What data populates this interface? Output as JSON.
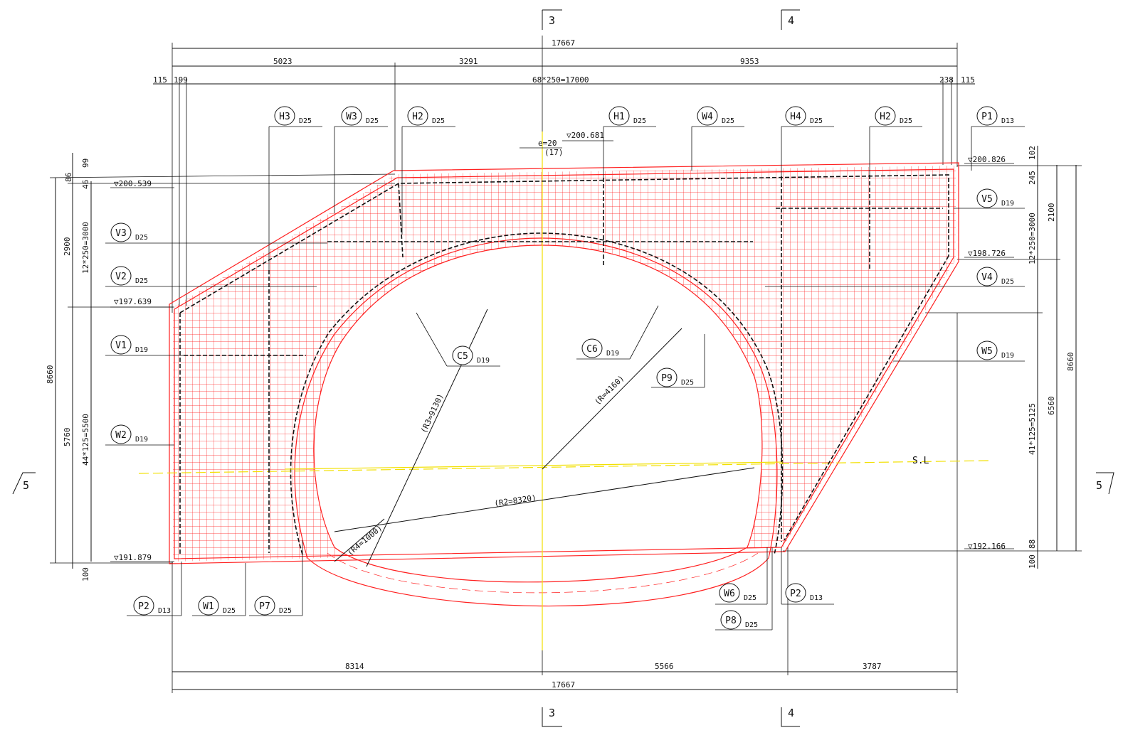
{
  "colors": {
    "rebar": "#ff2020",
    "centerline": "#f2e000",
    "ink": "#111111"
  },
  "sections": {
    "top": [
      "3",
      "4"
    ],
    "bottom": [
      "3",
      "4"
    ],
    "left": "5",
    "right": "5"
  },
  "dims_top": {
    "overall": "17667",
    "seg1": "5023",
    "seg2": "3291",
    "seg3": "9353",
    "left_a": "115",
    "left_b": "199",
    "pitch": "68*250=17000",
    "right_a": "238",
    "right_b": "115"
  },
  "dims_bottom": {
    "seg1": "8314",
    "seg2": "5566",
    "seg3": "3787",
    "overall": "17667"
  },
  "dims_left": {
    "a": "99",
    "b": "86",
    "c": "46",
    "d": "2900",
    "e": "12*250=3000",
    "f": "8660",
    "g": "5760",
    "h": "44*125=5500",
    "i": "100"
  },
  "dims_right": {
    "a": "102",
    "b": "245",
    "c": "2100",
    "d": "12*250=3000",
    "e": "8660",
    "f": "6560",
    "g": "41*125=5125",
    "h": "88",
    "i": "100"
  },
  "levels": {
    "l1": "▽200.539",
    "l2": "▽197.639",
    "l3": "▽191.879",
    "l4": "▽200.681",
    "l5": "▽200.826",
    "l6": "▽198.726",
    "l7": "▽192.166"
  },
  "eccentricity": {
    "e": "e=20",
    "paren": "(17)"
  },
  "radii": {
    "r1": "(R3=9130)",
    "r2": "(R=4160)",
    "r3": "(R2=8320)",
    "r4": "(R4=1000)"
  },
  "sl_label": "S.L",
  "callouts": [
    {
      "id": "H3",
      "size": "D25"
    },
    {
      "id": "W3",
      "size": "D25"
    },
    {
      "id": "H2",
      "size": "D25"
    },
    {
      "id": "H1",
      "size": "D25"
    },
    {
      "id": "W4",
      "size": "D25"
    },
    {
      "id": "H4",
      "size": "D25"
    },
    {
      "id": "H2",
      "size": "D25"
    },
    {
      "id": "P1",
      "size": "D13"
    },
    {
      "id": "V3",
      "size": "D25"
    },
    {
      "id": "V2",
      "size": "D25"
    },
    {
      "id": "V1",
      "size": "D19"
    },
    {
      "id": "W2",
      "size": "D19"
    },
    {
      "id": "V5",
      "size": "D19"
    },
    {
      "id": "V4",
      "size": "D25"
    },
    {
      "id": "W5",
      "size": "D19"
    },
    {
      "id": "C5",
      "size": "D19"
    },
    {
      "id": "C6",
      "size": "D19"
    },
    {
      "id": "P9",
      "size": "D25"
    },
    {
      "id": "P2",
      "size": "D13"
    },
    {
      "id": "W1",
      "size": "D25"
    },
    {
      "id": "P7",
      "size": "D25"
    },
    {
      "id": "W6",
      "size": "D25"
    },
    {
      "id": "P8",
      "size": "D25"
    },
    {
      "id": "P2",
      "size": "D13"
    }
  ]
}
